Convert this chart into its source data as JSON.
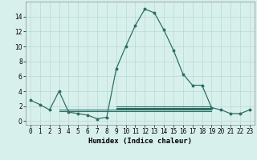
{
  "x": [
    0,
    1,
    2,
    3,
    4,
    5,
    6,
    7,
    8,
    9,
    10,
    11,
    12,
    13,
    14,
    15,
    16,
    17,
    18,
    19,
    20,
    21,
    22,
    23
  ],
  "y_main": [
    2.8,
    2.2,
    1.5,
    4.0,
    1.2,
    1.0,
    0.8,
    0.3,
    0.5,
    7.0,
    10.0,
    12.8,
    15.0,
    14.5,
    12.2,
    9.5,
    6.3,
    4.8,
    4.8,
    1.8,
    1.5,
    1.0,
    1.0,
    1.5
  ],
  "flat_lines": [
    {
      "x_start": 3,
      "x_end": 19,
      "y": 1.3
    },
    {
      "x_start": 3,
      "x_end": 19,
      "y": 1.5
    },
    {
      "x_start": 9,
      "x_end": 19,
      "y": 1.6
    },
    {
      "x_start": 9,
      "x_end": 19,
      "y": 1.8
    },
    {
      "x_start": 9,
      "x_end": 19,
      "y": 2.0
    }
  ],
  "line_color": "#2e6e65",
  "bg_color": "#d8f0ec",
  "grid_color": "#b8d8d4",
  "xlabel": "Humidex (Indice chaleur)",
  "xlim": [
    -0.5,
    23.5
  ],
  "ylim": [
    -0.5,
    16.0
  ],
  "yticks": [
    0,
    2,
    4,
    6,
    8,
    10,
    12,
    14
  ],
  "xtick_labels": [
    "0",
    "1",
    "2",
    "3",
    "4",
    "5",
    "6",
    "7",
    "8",
    "9",
    "10",
    "11",
    "12",
    "13",
    "14",
    "15",
    "16",
    "17",
    "18",
    "19",
    "20",
    "21",
    "22",
    "23"
  ],
  "tick_fontsize": 5.5,
  "label_fontsize": 6.5
}
